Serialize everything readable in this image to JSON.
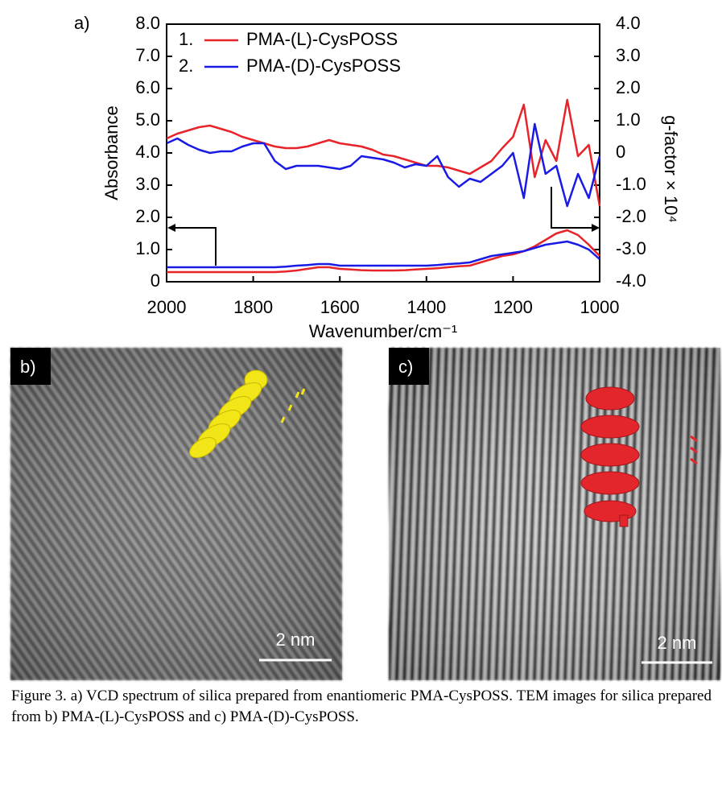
{
  "panel_labels": [
    "a)",
    "b)",
    "c)"
  ],
  "chart_data": {
    "type": "line",
    "xlabel": "Wavenumber/cm⁻¹",
    "ylabel": "Absorbance",
    "y2label": "g-factor × 10⁴",
    "x": [
      2000,
      1975,
      1950,
      1925,
      1900,
      1875,
      1850,
      1825,
      1800,
      1775,
      1750,
      1725,
      1700,
      1675,
      1650,
      1625,
      1600,
      1575,
      1550,
      1525,
      1500,
      1475,
      1450,
      1425,
      1400,
      1375,
      1350,
      1325,
      1300,
      1275,
      1250,
      1225,
      1200,
      1175,
      1150,
      1125,
      1100,
      1075,
      1050,
      1025,
      1000
    ],
    "xlim": [
      2000,
      1000
    ],
    "xticks": [
      2000,
      1800,
      1600,
      1400,
      1200,
      1000
    ],
    "ylim": [
      0,
      8
    ],
    "yticks": [
      0,
      {
        "value": 1,
        "label": "1.0"
      },
      {
        "value": 2,
        "label": "2.0"
      },
      {
        "value": 3,
        "label": "3.0"
      },
      {
        "value": 4,
        "label": "4.0"
      },
      {
        "value": 5,
        "label": "5.0"
      },
      {
        "value": 6,
        "label": "6.0"
      },
      {
        "value": 7,
        "label": "7.0"
      },
      {
        "value": 8,
        "label": "8.0"
      }
    ],
    "y2lim": [
      -4,
      4
    ],
    "y2ticks": [
      {
        "value": -4,
        "label": "-4.0"
      },
      {
        "value": -3,
        "label": "-3.0"
      },
      {
        "value": -2,
        "label": "-2.0"
      },
      {
        "value": -1,
        "label": "-1.0"
      },
      0,
      {
        "value": 1,
        "label": "1.0"
      },
      {
        "value": 2,
        "label": "2.0"
      },
      {
        "value": 3,
        "label": "3.0"
      },
      {
        "value": 4,
        "label": "4.0"
      }
    ],
    "legend_numbers": [
      "1.",
      "2."
    ],
    "series": [
      {
        "name": "PMA-(L)-CysPOSS",
        "color": "#e8232a",
        "axis": "y2",
        "values": [
          0.45,
          0.6,
          0.7,
          0.8,
          0.85,
          0.75,
          0.65,
          0.5,
          0.4,
          0.3,
          0.2,
          0.15,
          0.15,
          0.2,
          0.3,
          0.4,
          0.3,
          0.25,
          0.2,
          0.1,
          -0.05,
          -0.1,
          -0.2,
          -0.3,
          -0.4,
          -0.4,
          -0.45,
          -0.55,
          -0.65,
          -0.45,
          -0.25,
          0.15,
          0.5,
          1.5,
          -0.75,
          0.4,
          -0.25,
          1.65,
          -0.1,
          0.25,
          -1.65
        ]
      },
      {
        "name": "PMA-(D)-CysPOSS",
        "color": "#1a1ae6",
        "axis": "y2",
        "values": [
          0.3,
          0.45,
          0.25,
          0.1,
          0,
          0.05,
          0.05,
          0.2,
          0.3,
          0.3,
          -0.25,
          -0.5,
          -0.4,
          -0.4,
          -0.4,
          -0.45,
          -0.5,
          -0.4,
          -0.1,
          -0.15,
          -0.2,
          -0.3,
          -0.45,
          -0.35,
          -0.4,
          -0.1,
          -0.75,
          -1.05,
          -0.8,
          -0.9,
          -0.65,
          -0.4,
          0,
          -1.4,
          0.9,
          -0.65,
          -0.4,
          -1.65,
          -0.65,
          -1.4,
          -0.1
        ]
      },
      {
        "name": "PMA-(L)-CysPOSS",
        "color": "#e8232a",
        "values": [
          0.3,
          0.3,
          0.3,
          0.3,
          0.3,
          0.3,
          0.3,
          0.3,
          0.3,
          0.3,
          0.3,
          0.32,
          0.35,
          0.4,
          0.45,
          0.45,
          0.4,
          0.38,
          0.36,
          0.35,
          0.35,
          0.35,
          0.36,
          0.38,
          0.4,
          0.42,
          0.45,
          0.48,
          0.5,
          0.6,
          0.7,
          0.8,
          0.85,
          0.95,
          1.1,
          1.3,
          1.5,
          1.6,
          1.45,
          1.15,
          0.8
        ]
      },
      {
        "name": "PMA-(D)-CysPOSS",
        "color": "#1a1ae6",
        "values": [
          0.45,
          0.45,
          0.45,
          0.45,
          0.45,
          0.45,
          0.45,
          0.45,
          0.45,
          0.45,
          0.45,
          0.47,
          0.5,
          0.52,
          0.55,
          0.55,
          0.5,
          0.5,
          0.5,
          0.5,
          0.5,
          0.5,
          0.5,
          0.5,
          0.5,
          0.52,
          0.55,
          0.57,
          0.6,
          0.7,
          0.8,
          0.85,
          0.9,
          0.95,
          1.05,
          1.15,
          1.2,
          1.25,
          1.15,
          1.0,
          0.7
        ]
      }
    ]
  },
  "scale_bars": [
    "2 nm",
    "2 nm"
  ],
  "caption": "Figure 3. a) VCD spectrum of silica prepared from enantiomeric PMA-CysPOSS. TEM images for silica prepared from b) PMA-(L)-CysPOSS and c) PMA-(D)-CysPOSS."
}
